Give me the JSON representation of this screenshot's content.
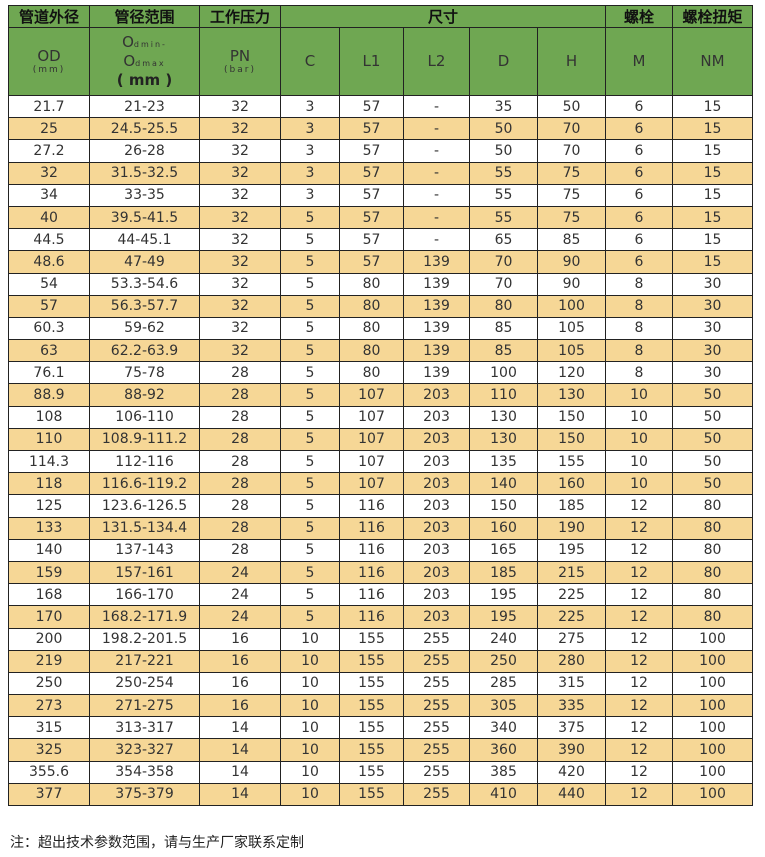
{
  "header": {
    "group": [
      "管道外径",
      "管径范围",
      "工作压力",
      "尺寸",
      "螺栓",
      "螺栓扭矩"
    ],
    "od": "OD",
    "od_unit": "(mm)",
    "range_a": "O",
    "range_a_sub": "dmin-",
    "range_b": "O",
    "range_b_sub": "dmax",
    "range_unit": "( mm )",
    "pn": "PN",
    "pn_unit": "(bar)",
    "cols": [
      "C",
      "L1",
      "L2",
      "D",
      "H",
      "M",
      "NM"
    ]
  },
  "colors": {
    "header": "#6fa752",
    "stripe": "#f6d796"
  },
  "rows": [
    [
      "21.7",
      "21-23",
      "32",
      "3",
      "57",
      "-",
      "35",
      "50",
      "6",
      "15"
    ],
    [
      "25",
      "24.5-25.5",
      "32",
      "3",
      "57",
      "-",
      "50",
      "70",
      "6",
      "15"
    ],
    [
      "27.2",
      "26-28",
      "32",
      "3",
      "57",
      "-",
      "50",
      "70",
      "6",
      "15"
    ],
    [
      "32",
      "31.5-32.5",
      "32",
      "3",
      "57",
      "-",
      "55",
      "75",
      "6",
      "15"
    ],
    [
      "34",
      "33-35",
      "32",
      "3",
      "57",
      "-",
      "55",
      "75",
      "6",
      "15"
    ],
    [
      "40",
      "39.5-41.5",
      "32",
      "5",
      "57",
      "-",
      "55",
      "75",
      "6",
      "15"
    ],
    [
      "44.5",
      "44-45.1",
      "32",
      "5",
      "57",
      "-",
      "65",
      "85",
      "6",
      "15"
    ],
    [
      "48.6",
      "47-49",
      "32",
      "5",
      "57",
      "139",
      "70",
      "90",
      "6",
      "15"
    ],
    [
      "54",
      "53.3-54.6",
      "32",
      "5",
      "80",
      "139",
      "70",
      "90",
      "8",
      "30"
    ],
    [
      "57",
      "56.3-57.7",
      "32",
      "5",
      "80",
      "139",
      "80",
      "100",
      "8",
      "30"
    ],
    [
      "60.3",
      "59-62",
      "32",
      "5",
      "80",
      "139",
      "85",
      "105",
      "8",
      "30"
    ],
    [
      "63",
      "62.2-63.9",
      "32",
      "5",
      "80",
      "139",
      "85",
      "105",
      "8",
      "30"
    ],
    [
      "76.1",
      "75-78",
      "28",
      "5",
      "80",
      "139",
      "100",
      "120",
      "8",
      "30"
    ],
    [
      "88.9",
      "88-92",
      "28",
      "5",
      "107",
      "203",
      "110",
      "130",
      "10",
      "50"
    ],
    [
      "108",
      "106-110",
      "28",
      "5",
      "107",
      "203",
      "130",
      "150",
      "10",
      "50"
    ],
    [
      "110",
      "108.9-111.2",
      "28",
      "5",
      "107",
      "203",
      "130",
      "150",
      "10",
      "50"
    ],
    [
      "114.3",
      "112-116",
      "28",
      "5",
      "107",
      "203",
      "135",
      "155",
      "10",
      "50"
    ],
    [
      "118",
      "116.6-119.2",
      "28",
      "5",
      "107",
      "203",
      "140",
      "160",
      "10",
      "50"
    ],
    [
      "125",
      "123.6-126.5",
      "28",
      "5",
      "116",
      "203",
      "150",
      "185",
      "12",
      "80"
    ],
    [
      "133",
      "131.5-134.4",
      "28",
      "5",
      "116",
      "203",
      "160",
      "190",
      "12",
      "80"
    ],
    [
      "140",
      "137-143",
      "28",
      "5",
      "116",
      "203",
      "165",
      "195",
      "12",
      "80"
    ],
    [
      "159",
      "157-161",
      "24",
      "5",
      "116",
      "203",
      "185",
      "215",
      "12",
      "80"
    ],
    [
      "168",
      "166-170",
      "24",
      "5",
      "116",
      "203",
      "195",
      "225",
      "12",
      "80"
    ],
    [
      "170",
      "168.2-171.9",
      "24",
      "5",
      "116",
      "203",
      "195",
      "225",
      "12",
      "80"
    ],
    [
      "200",
      "198.2-201.5",
      "16",
      "10",
      "155",
      "255",
      "240",
      "275",
      "12",
      "100"
    ],
    [
      "219",
      "217-221",
      "16",
      "10",
      "155",
      "255",
      "250",
      "280",
      "12",
      "100"
    ],
    [
      "250",
      "250-254",
      "16",
      "10",
      "155",
      "255",
      "285",
      "315",
      "12",
      "100"
    ],
    [
      "273",
      "271-275",
      "16",
      "10",
      "155",
      "255",
      "305",
      "335",
      "12",
      "100"
    ],
    [
      "315",
      "313-317",
      "14",
      "10",
      "155",
      "255",
      "340",
      "375",
      "12",
      "100"
    ],
    [
      "325",
      "323-327",
      "14",
      "10",
      "155",
      "255",
      "360",
      "390",
      "12",
      "100"
    ],
    [
      "355.6",
      "354-358",
      "14",
      "10",
      "155",
      "255",
      "385",
      "420",
      "12",
      "100"
    ],
    [
      "377",
      "375-379",
      "14",
      "10",
      "155",
      "255",
      "410",
      "440",
      "12",
      "100"
    ]
  ],
  "note": "注：超出技术参数范围，请与生产厂家联系定制"
}
